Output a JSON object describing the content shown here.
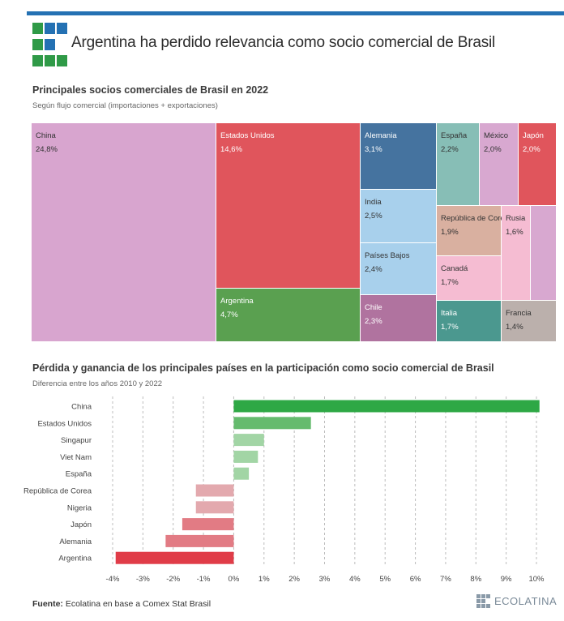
{
  "header": {
    "title": "Argentina ha perdido relevancia como socio comercial de Brasil"
  },
  "treemap": {
    "title": "Principales socios comerciales de Brasil en 2022",
    "subtitle": "Según flujo comercial (importaciones + exportaciones)",
    "tiles": [
      {
        "name": "China",
        "value": "24,8%",
        "color": "#d8a5cf"
      },
      {
        "name": "Estados Unidos",
        "value": "14,6%",
        "color": "#e0555c"
      },
      {
        "name": "Argentina",
        "value": "4,7%",
        "color": "#5aa050"
      },
      {
        "name": "Alemania",
        "value": "3,1%",
        "color": "#45739f"
      },
      {
        "name": "India",
        "value": "2,5%",
        "color": "#a8d0ec"
      },
      {
        "name": "Países Bajos",
        "value": "2,4%",
        "color": "#a8d0ec"
      },
      {
        "name": "Chile",
        "value": "2,3%",
        "color": "#b0739f"
      },
      {
        "name": "España",
        "value": "2,2%",
        "color": "#87beb6"
      },
      {
        "name": "México",
        "value": "2,0%",
        "color": "#d8a8d0"
      },
      {
        "name": "Japón",
        "value": "2,0%",
        "color": "#e0555c"
      },
      {
        "name": "República de Corea",
        "value": "1,9%",
        "color": "#d9b0a0"
      },
      {
        "name": "Rusia",
        "value": "1,6%",
        "color": "#f5bcd2"
      },
      {
        "name": "Canadá",
        "value": "1,7%",
        "color": "#f5bcd2"
      },
      {
        "name": "",
        "value": "",
        "color": "#d8a8d0"
      },
      {
        "name": "Italia",
        "value": "1,7%",
        "color": "#4b988f"
      },
      {
        "name": "Francia",
        "value": "1,4%",
        "color": "#bbb0ac"
      }
    ]
  },
  "bars": {
    "title": "Pérdida y ganancia de los principales países en la participación como socio comercial de Brasil",
    "subtitle": "Diferencia entre los años 2010 y 2022"
  },
  "chart_data": {
    "type": "bar",
    "orientation": "horizontal",
    "categories": [
      "China",
      "Estados Unidos",
      "Singapur",
      "Viet Nam",
      "España",
      "República de Corea",
      "Nigeria",
      "Japón",
      "Alemania",
      "Argentina"
    ],
    "values": [
      10.1,
      2.55,
      1.0,
      0.8,
      0.5,
      -1.25,
      -1.25,
      -1.7,
      -2.25,
      -3.9
    ],
    "xlim": [
      -4,
      10
    ],
    "xticks": [
      "-4%",
      "-3%",
      "-2%",
      "-1%",
      "0%",
      "1%",
      "2%",
      "3%",
      "4%",
      "5%",
      "6%",
      "7%",
      "8%",
      "9%",
      "10%"
    ],
    "grid": true,
    "colors": [
      "#2ea845",
      "#65bb6e",
      "#a2d5a5",
      "#a2d5a5",
      "#a2d5a5",
      "#e3a9ae",
      "#e3a9ae",
      "#e27b84",
      "#e27b84",
      "#e03c48"
    ]
  },
  "footer": {
    "source_label": "Fuente:",
    "source_text": "Ecolatina en base a Comex Stat Brasil",
    "brand": "ECOLATINA"
  }
}
